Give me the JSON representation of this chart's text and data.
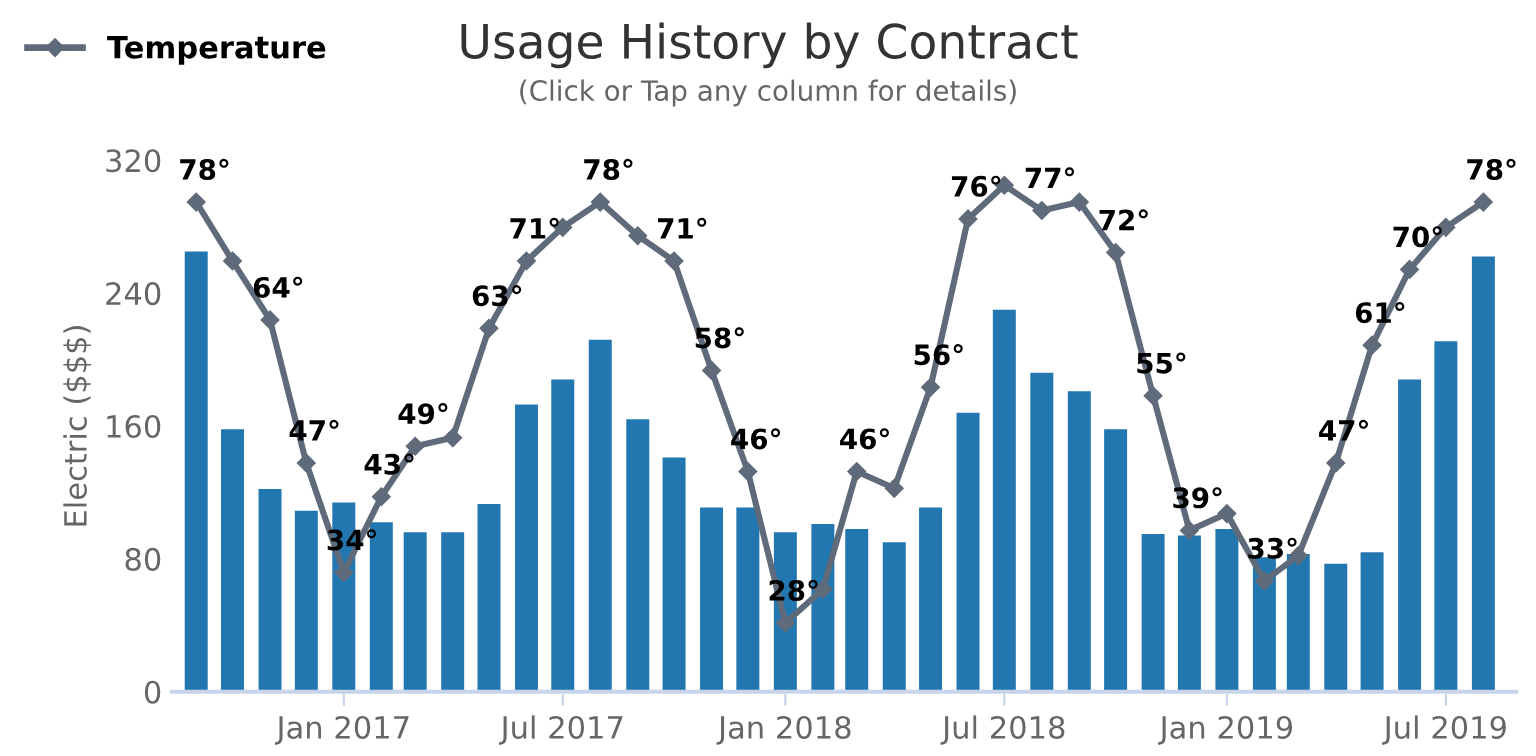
{
  "chart_data": {
    "type": "bar",
    "title": "Usage History by Contract",
    "subtitle": "(Click or Tap any column for details)",
    "ylabel": "Electric ($$$)",
    "x": [
      "2016-09",
      "2016-10",
      "2016-11",
      "2016-12",
      "2017-01",
      "2017-02",
      "2017-03",
      "2017-04",
      "2017-05",
      "2017-06",
      "2017-07",
      "2017-08",
      "2017-09",
      "2017-10",
      "2017-11",
      "2017-12",
      "2018-01",
      "2018-02",
      "2018-03",
      "2018-04",
      "2018-05",
      "2018-06",
      "2018-07",
      "2018-08",
      "2018-09",
      "2018-10",
      "2018-11",
      "2018-12",
      "2019-01",
      "2019-02",
      "2019-03",
      "2019-04",
      "2019-05",
      "2019-06",
      "2019-07",
      "2019-08"
    ],
    "series": [
      {
        "color": "#2277b0",
        "values": [
          265,
          158,
          122,
          109,
          114,
          102,
          96,
          96,
          113,
          173,
          188,
          212,
          164,
          141,
          111,
          111,
          96,
          101,
          98,
          90,
          111,
          168,
          230,
          192,
          181,
          158,
          95,
          94,
          98,
          81,
          83,
          77,
          84,
          188,
          211,
          262
        ]
      },
      {
        "type": "line",
        "name": "Temperature",
        "axis": "y2",
        "color": "#5f6b7a",
        "marker": "diamond",
        "values": [
          78,
          71,
          64,
          47,
          34,
          43,
          49,
          50,
          63,
          71,
          75,
          78,
          74,
          71,
          58,
          46,
          28,
          32,
          46,
          44,
          56,
          76,
          80,
          77,
          78,
          72,
          55,
          39,
          41,
          33,
          36,
          47,
          61,
          70,
          75,
          78
        ],
        "value_labels": [
          "78°",
          null,
          "64°",
          "47°",
          "34°",
          "43°",
          "49°",
          null,
          "63°",
          "71°",
          null,
          "78°",
          null,
          "71°",
          "58°",
          "46°",
          "28°",
          null,
          "46°",
          null,
          "56°",
          "76°",
          null,
          "77°",
          null,
          "72°",
          "55°",
          "39°",
          null,
          "33°",
          null,
          "47°",
          "61°",
          "70°",
          null,
          "78°"
        ]
      }
    ],
    "xlim": [
      "2016-08-12",
      "2019-08-28"
    ],
    "xticks": [
      {
        "value": "2017-01",
        "label": "Jan 2017"
      },
      {
        "value": "2017-07",
        "label": "Jul 2017"
      },
      {
        "value": "2018-01",
        "label": "Jan 2018"
      },
      {
        "value": "2018-07",
        "label": "Jul 2018"
      },
      {
        "value": "2019-01",
        "label": "Jan 2019"
      },
      {
        "value": "2019-07",
        "label": "Jul 2019"
      }
    ],
    "ylim": [
      0,
      320
    ],
    "yticks": [
      0,
      80,
      160,
      240,
      320
    ],
    "grid": false,
    "legend": "top left"
  }
}
